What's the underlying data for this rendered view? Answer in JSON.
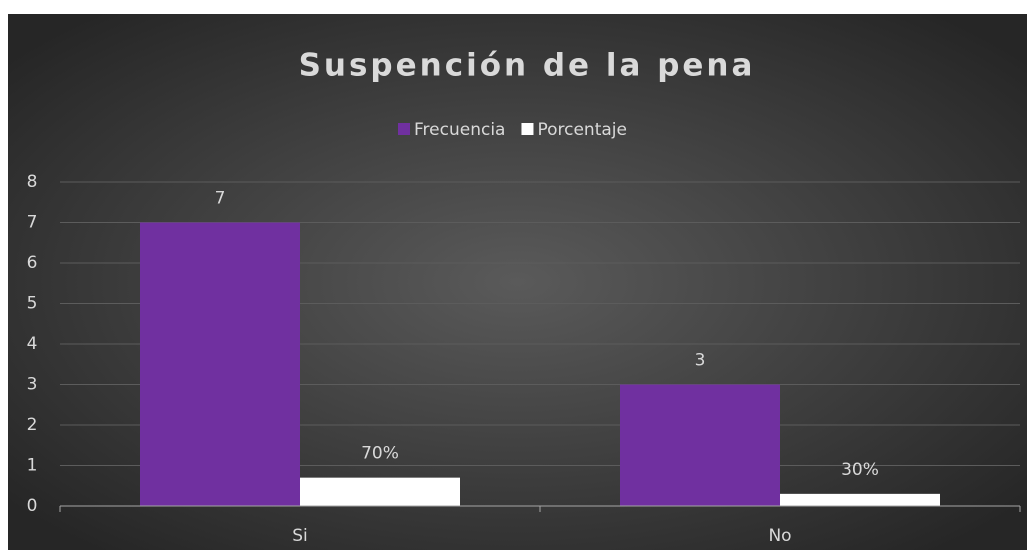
{
  "chart_data": {
    "type": "bar",
    "title": "Suspención de la pena",
    "categories": [
      "Si",
      "No"
    ],
    "series": [
      {
        "name": "Frecuencia",
        "color": "#7030a0",
        "values": [
          7,
          3
        ]
      },
      {
        "name": "Porcentaje",
        "color": "#ffffff",
        "values": [
          0.7,
          0.3
        ],
        "value_labels": [
          "70%",
          "30%"
        ]
      }
    ],
    "ylim": [
      0,
      8
    ],
    "yticks": [
      0,
      1,
      2,
      3,
      4,
      5,
      6,
      7,
      8
    ],
    "grid": true,
    "legend": "top"
  }
}
